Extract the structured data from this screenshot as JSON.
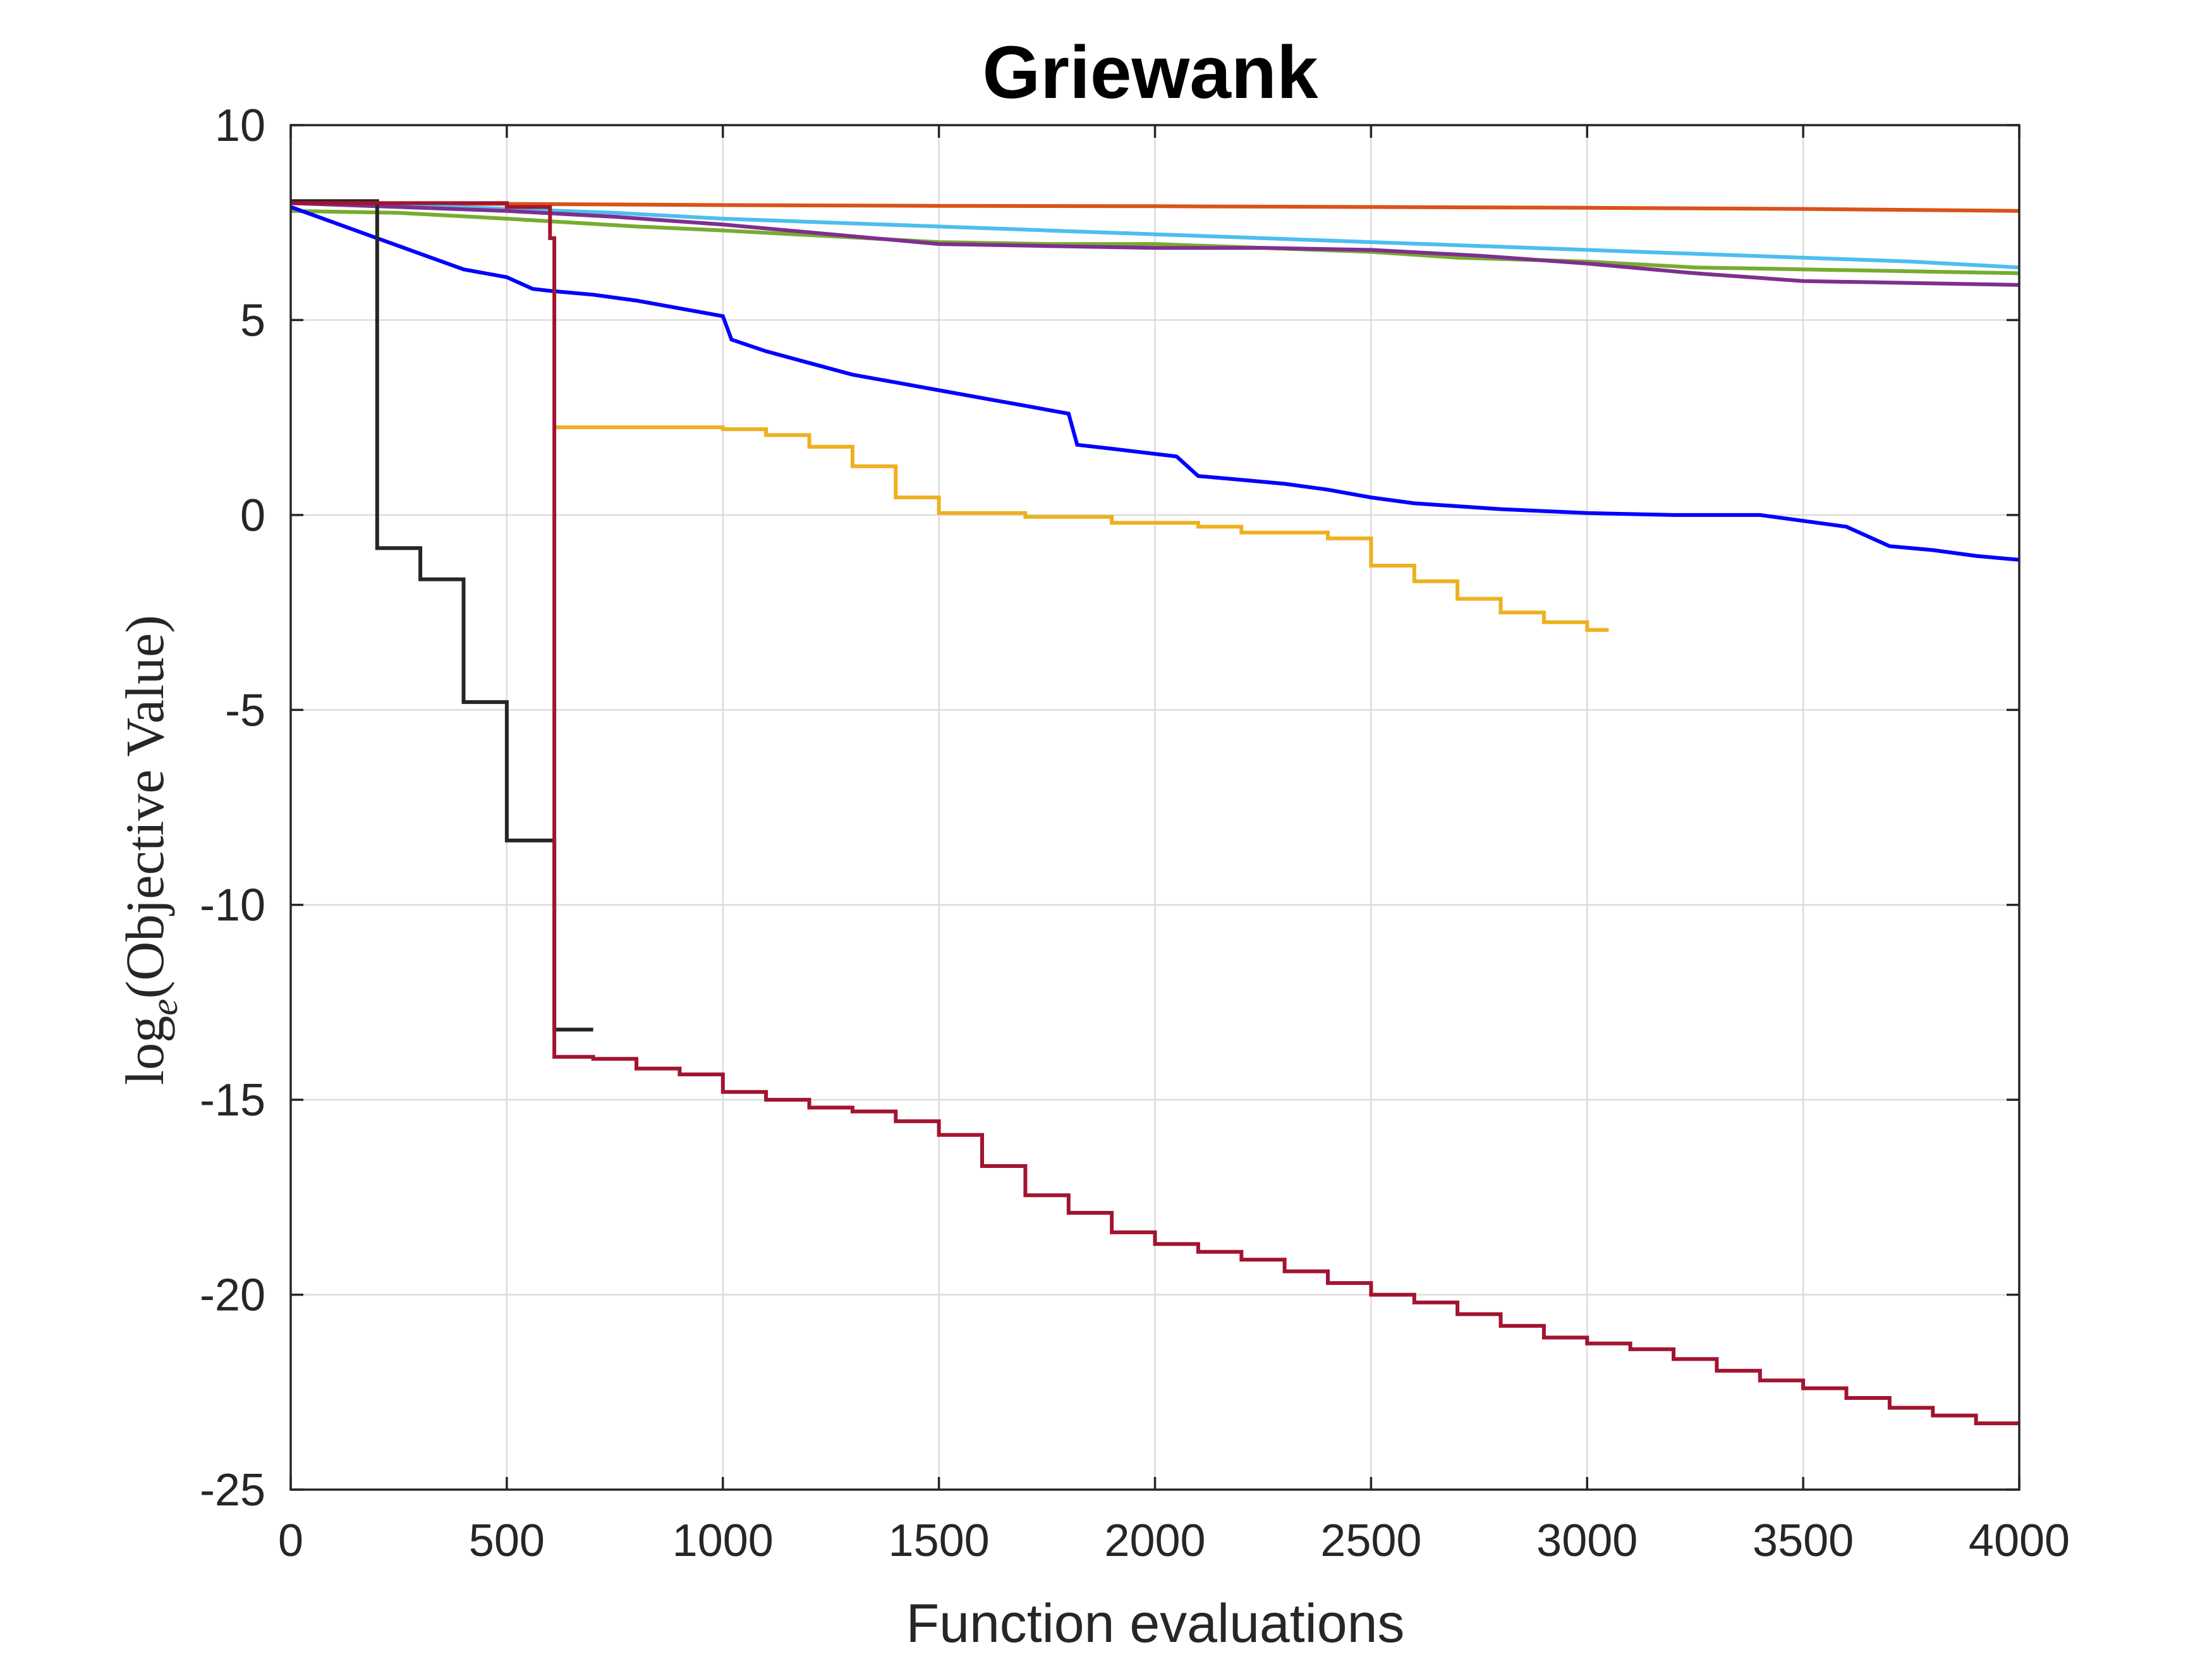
{
  "chart_data": {
    "type": "line",
    "title": "Griewank",
    "xlabel": "Function evaluations",
    "ylabel": {
      "prefix": "log",
      "subscript": "e",
      "suffix": "(Objective Value)"
    },
    "xlim": [
      0,
      4000
    ],
    "ylim": [
      -25,
      10
    ],
    "xticks": [
      0,
      500,
      1000,
      1500,
      2000,
      2500,
      3000,
      3500,
      4000
    ],
    "xtick_labels": [
      "0",
      "500",
      "1000",
      "1500",
      "2000",
      "2500",
      "3000",
      "3500",
      "4000"
    ],
    "yticks": [
      -25,
      -20,
      -15,
      -10,
      -5,
      0,
      5,
      10
    ],
    "ytick_labels": [
      "-25",
      "-20",
      "-15",
      "-10",
      "-5",
      "0",
      "5",
      "10"
    ],
    "grid": true,
    "legend": false,
    "series": [
      {
        "color": "#D95319",
        "step": false,
        "x": [
          0,
          500,
          1000,
          1500,
          2000,
          2500,
          3000,
          3500,
          4000
        ],
        "y": [
          8.0,
          7.98,
          7.95,
          7.93,
          7.92,
          7.9,
          7.88,
          7.85,
          7.8
        ]
      },
      {
        "color": "#4DBEEE",
        "step": false,
        "x": [
          0,
          250,
          500,
          750,
          1000,
          1250,
          1500,
          1750,
          2000,
          2250,
          2500,
          2750,
          3000,
          3250,
          3500,
          3750,
          4000
        ],
        "y": [
          8.0,
          7.95,
          7.85,
          7.75,
          7.6,
          7.5,
          7.4,
          7.3,
          7.2,
          7.1,
          7.0,
          6.9,
          6.8,
          6.7,
          6.6,
          6.5,
          6.35
        ]
      },
      {
        "color": "#77AC30",
        "step": false,
        "x": [
          0,
          250,
          500,
          800,
          1000,
          1250,
          1500,
          1750,
          2000,
          2250,
          2500,
          2700,
          3000,
          3250,
          3500,
          3750,
          4000
        ],
        "y": [
          7.8,
          7.75,
          7.6,
          7.4,
          7.3,
          7.15,
          7.0,
          6.95,
          6.95,
          6.85,
          6.75,
          6.6,
          6.5,
          6.35,
          6.3,
          6.25,
          6.2
        ]
      },
      {
        "color": "#7E2F8E",
        "step": false,
        "x": [
          0,
          250,
          500,
          750,
          1000,
          1250,
          1500,
          1750,
          2000,
          2250,
          2500,
          2750,
          3000,
          3250,
          3500,
          3750,
          4000
        ],
        "y": [
          8.0,
          7.9,
          7.8,
          7.65,
          7.45,
          7.2,
          6.95,
          6.9,
          6.85,
          6.85,
          6.8,
          6.65,
          6.45,
          6.2,
          6.0,
          5.95,
          5.9
        ]
      },
      {
        "color": "#0000FF",
        "step": false,
        "x": [
          0,
          100,
          200,
          300,
          400,
          500,
          560,
          600,
          700,
          800,
          900,
          1000,
          1020,
          1100,
          1200,
          1300,
          1400,
          1500,
          1600,
          1700,
          1800,
          1820,
          1900,
          2050,
          2100,
          2200,
          2300,
          2400,
          2500,
          2600,
          2800,
          3000,
          3200,
          3400,
          3600,
          3700,
          3800,
          3900,
          4000
        ],
        "y": [
          7.9,
          7.5,
          7.1,
          6.7,
          6.3,
          6.1,
          5.8,
          5.75,
          5.65,
          5.5,
          5.3,
          5.1,
          4.5,
          4.2,
          3.9,
          3.6,
          3.4,
          3.2,
          3.0,
          2.8,
          2.6,
          1.8,
          1.7,
          1.5,
          1.0,
          0.9,
          0.8,
          0.65,
          0.45,
          0.3,
          0.15,
          0.05,
          0.0,
          0.0,
          -0.3,
          -0.8,
          -0.9,
          -1.05,
          -1.15
        ]
      },
      {
        "color": "#EDB120",
        "step": true,
        "x": [
          610,
          700,
          1000,
          1100,
          1200,
          1300,
          1400,
          1500,
          1700,
          1900,
          2100,
          2200,
          2400,
          2500,
          2600,
          2700,
          2800,
          2900,
          3000,
          3050
        ],
        "y": [
          2.25,
          2.25,
          2.2,
          2.05,
          1.75,
          1.25,
          0.45,
          0.05,
          -0.05,
          -0.2,
          -0.3,
          -0.45,
          -0.6,
          -1.3,
          -1.7,
          -2.15,
          -2.5,
          -2.75,
          -2.95,
          -2.95
        ]
      },
      {
        "color": "#262626",
        "step": true,
        "x": [
          0,
          200,
          200,
          300,
          400,
          500,
          610,
          700
        ],
        "y": [
          8.05,
          8.05,
          -0.85,
          -1.65,
          -4.8,
          -8.35,
          -13.2,
          -13.2
        ]
      },
      {
        "color": "#A2142F",
        "step": true,
        "x": [
          0,
          500,
          600,
          610,
          700,
          800,
          900,
          1000,
          1100,
          1200,
          1300,
          1400,
          1500,
          1600,
          1700,
          1800,
          1900,
          2000,
          2100,
          2200,
          2300,
          2400,
          2500,
          2600,
          2700,
          2800,
          2900,
          3000,
          3100,
          3200,
          3300,
          3400,
          3500,
          3600,
          3700,
          3800,
          3900,
          4000
        ],
        "y": [
          8.0,
          7.9,
          7.1,
          -13.9,
          -13.95,
          -14.2,
          -14.35,
          -14.8,
          -15.0,
          -15.2,
          -15.3,
          -15.55,
          -15.9,
          -16.7,
          -17.45,
          -17.9,
          -18.4,
          -18.7,
          -18.9,
          -19.1,
          -19.4,
          -19.7,
          -20.0,
          -20.2,
          -20.5,
          -20.8,
          -21.1,
          -21.25,
          -21.4,
          -21.65,
          -21.95,
          -22.2,
          -22.4,
          -22.65,
          -22.9,
          -23.1,
          -23.3,
          -23.3
        ]
      }
    ]
  }
}
